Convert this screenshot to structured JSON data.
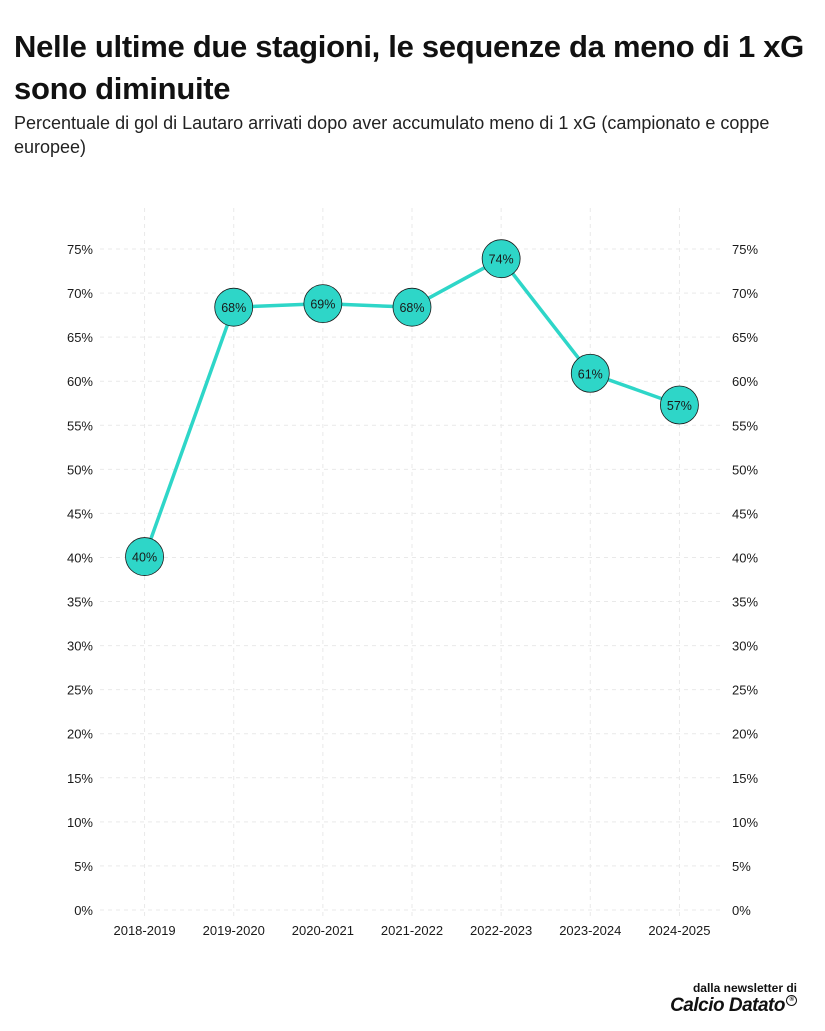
{
  "header": {
    "title": "Nelle ultime due stagioni, le sequenze da meno di 1 xG sono diminuite",
    "subtitle": "Percentuale di gol di Lautaro arrivati dopo aver accumulato meno di 1 xG (campionato e coppe europee)"
  },
  "footer": {
    "source_label": "dalla newsletter di",
    "brand": "Calcio Datato",
    "brand_mark": "®"
  },
  "colors": {
    "line": "#2ed6c8",
    "marker_fill": "#2ed6c8",
    "marker_stroke": "#1a1a1a",
    "grid": "#e9e9e9",
    "text": "#1a1a1a"
  },
  "chart_data": {
    "type": "line",
    "title": "",
    "xlabel": "",
    "ylabel": "",
    "categories": [
      "2018-2019",
      "2019-2020",
      "2020-2021",
      "2021-2022",
      "2022-2023",
      "2023-2024",
      "2024-2025"
    ],
    "values": [
      40.1,
      68.4,
      68.8,
      68.4,
      73.9,
      60.9,
      57.3
    ],
    "data_labels": [
      "40%",
      "68%",
      "69%",
      "68%",
      "74%",
      "61%",
      "57%"
    ],
    "ylim": [
      0,
      75
    ],
    "yticks": [
      0,
      5,
      10,
      15,
      20,
      25,
      30,
      35,
      40,
      45,
      50,
      55,
      60,
      65,
      70,
      75
    ],
    "ytick_labels": [
      "0%",
      "5%",
      "10%",
      "15%",
      "20%",
      "25%",
      "30%",
      "35%",
      "40%",
      "45%",
      "50%",
      "55%",
      "60%",
      "65%",
      "70%",
      "75%"
    ],
    "y_axis_sides": "both",
    "grid": true,
    "legend": "none"
  }
}
